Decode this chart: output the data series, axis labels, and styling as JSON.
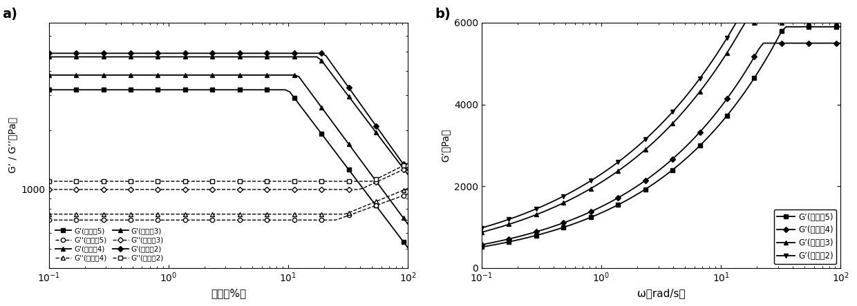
{
  "panel_a": {
    "xlabel": "应变（%）",
    "ylabel": "G’ / G’’（Pa）",
    "xlim_log": [
      -1,
      2
    ],
    "title": "a)"
  },
  "panel_b": {
    "xlabel": "ω（rad/s）",
    "ylabel": "G’（Pa）",
    "xlim_log": [
      -1,
      2
    ],
    "ylim": [
      0,
      6000
    ],
    "yticks": [
      0,
      2000,
      4000,
      6000
    ],
    "title": "b)"
  },
  "legend_a_col1": [
    "G’(实施兙5)",
    "G’’(实施兙5)",
    "G’(实施兙4)",
    "G’’(实施兙4)"
  ],
  "legend_a_col2": [
    "G’(实施兙3)",
    "G’’(实施兙3)",
    "G’(实施兙2)",
    "G’’(实施兙2)"
  ],
  "legend_b": [
    "G’(实施兙5)",
    "G’(实施兙4)",
    "G’(实施兙3)",
    "G’(实施兙2)"
  ],
  "markers_gp": [
    "s",
    "^",
    "^",
    "D"
  ],
  "markers_gpp": [
    "o",
    "^",
    "D",
    "s"
  ]
}
